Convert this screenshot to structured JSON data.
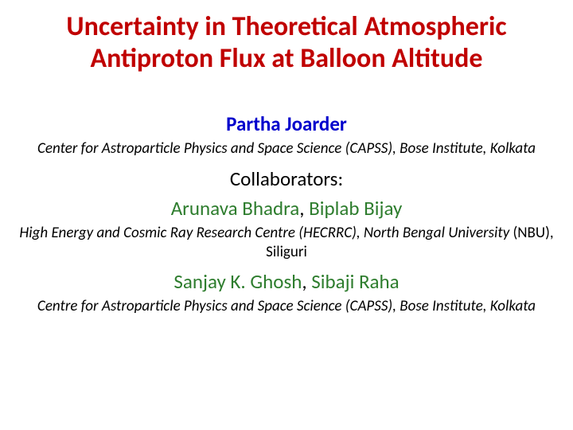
{
  "colors": {
    "title": "#c00000",
    "author_main": "#0000cc",
    "collab_name": "#2e7d2e",
    "text": "#000000",
    "background": "#ffffff"
  },
  "title": "Uncertainty in Theoretical Atmospheric Antiproton Flux at Balloon Altitude",
  "author": "Partha Joarder",
  "author_affil": "Center for Astroparticle Physics and Space Science (CAPSS), Bose Institute, Kolkata",
  "collab_label": "Collaborators:",
  "group1": {
    "name1": "Arunava Bhadra",
    "name2": "Biplab Bijay",
    "affil_ital": "High Energy and Cosmic Ray Research Centre (HECRRC), North Bengal University",
    "affil_plain": "(NBU), Siliguri"
  },
  "group2": {
    "name1": "Sanjay K. Ghosh",
    "name2": "Sibaji Raha",
    "affil": "Centre for Astroparticle Physics and Space Science (CAPSS), Bose Institute, Kolkata"
  }
}
